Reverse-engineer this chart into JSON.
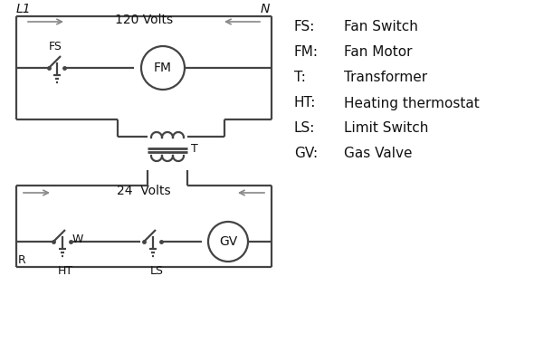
{
  "bg_color": "#ffffff",
  "line_color": "#444444",
  "text_color": "#111111",
  "arrow_color": "#888888",
  "legend_items": [
    [
      "FS:",
      "Fan Switch"
    ],
    [
      "FM:",
      "Fan Motor"
    ],
    [
      "T:",
      "Transformer"
    ],
    [
      "HT:",
      "Heating thermostat"
    ],
    [
      "LS:",
      "Limit Switch"
    ],
    [
      "GV:",
      "Gas Valve"
    ]
  ],
  "L1_label": "L1",
  "N_label": "N",
  "volts120_label": "120 Volts",
  "volts24_label": "24  Volts",
  "T_label": "T",
  "R_label": "R",
  "W_label": "W",
  "HT_label": "HT",
  "LS_label": "LS",
  "FS_label": "FS",
  "FM_label": "FM",
  "GV_label": "GV"
}
